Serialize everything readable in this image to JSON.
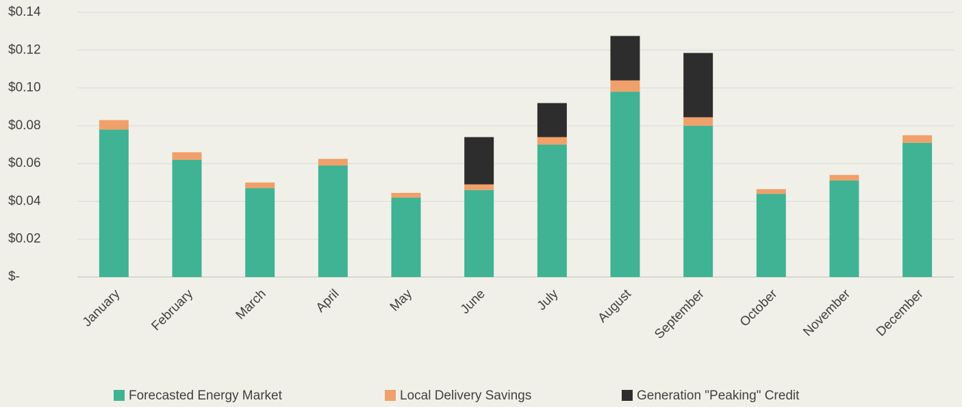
{
  "chart_data": {
    "type": "stacked_bar",
    "categories": [
      "January",
      "February",
      "March",
      "April",
      "May",
      "June",
      "July",
      "August",
      "September",
      "October",
      "November",
      "December"
    ],
    "series": [
      {
        "name": "Forecasted Energy Market",
        "color": "#3fb394",
        "values": [
          0.078,
          0.062,
          0.047,
          0.059,
          0.042,
          0.046,
          0.07,
          0.098,
          0.08,
          0.044,
          0.051,
          0.071
        ]
      },
      {
        "name": "Local Delivery Savings",
        "color": "#f0a06a",
        "values": [
          0.005,
          0.004,
          0.003,
          0.0035,
          0.0025,
          0.003,
          0.004,
          0.006,
          0.0045,
          0.0025,
          0.003,
          0.004
        ]
      },
      {
        "name": "Generation \"Peaking\" Credit",
        "color": "#2d2d2d",
        "values": [
          0,
          0,
          0,
          0,
          0,
          0.025,
          0.018,
          0.0235,
          0.034,
          0,
          0,
          0
        ]
      }
    ],
    "ylim": [
      0,
      0.14
    ],
    "yticks": [
      {
        "value": 0,
        "label": "$-"
      },
      {
        "value": 0.02,
        "label": "$0.02"
      },
      {
        "value": 0.04,
        "label": "$0.04"
      },
      {
        "value": 0.06,
        "label": "$0.06"
      },
      {
        "value": 0.08,
        "label": "$0.08"
      },
      {
        "value": 0.1,
        "label": "$0.10"
      },
      {
        "value": 0.12,
        "label": "$0.12"
      },
      {
        "value": 0.14,
        "label": "$0.14"
      }
    ],
    "grid": true,
    "legend": "bottom"
  }
}
